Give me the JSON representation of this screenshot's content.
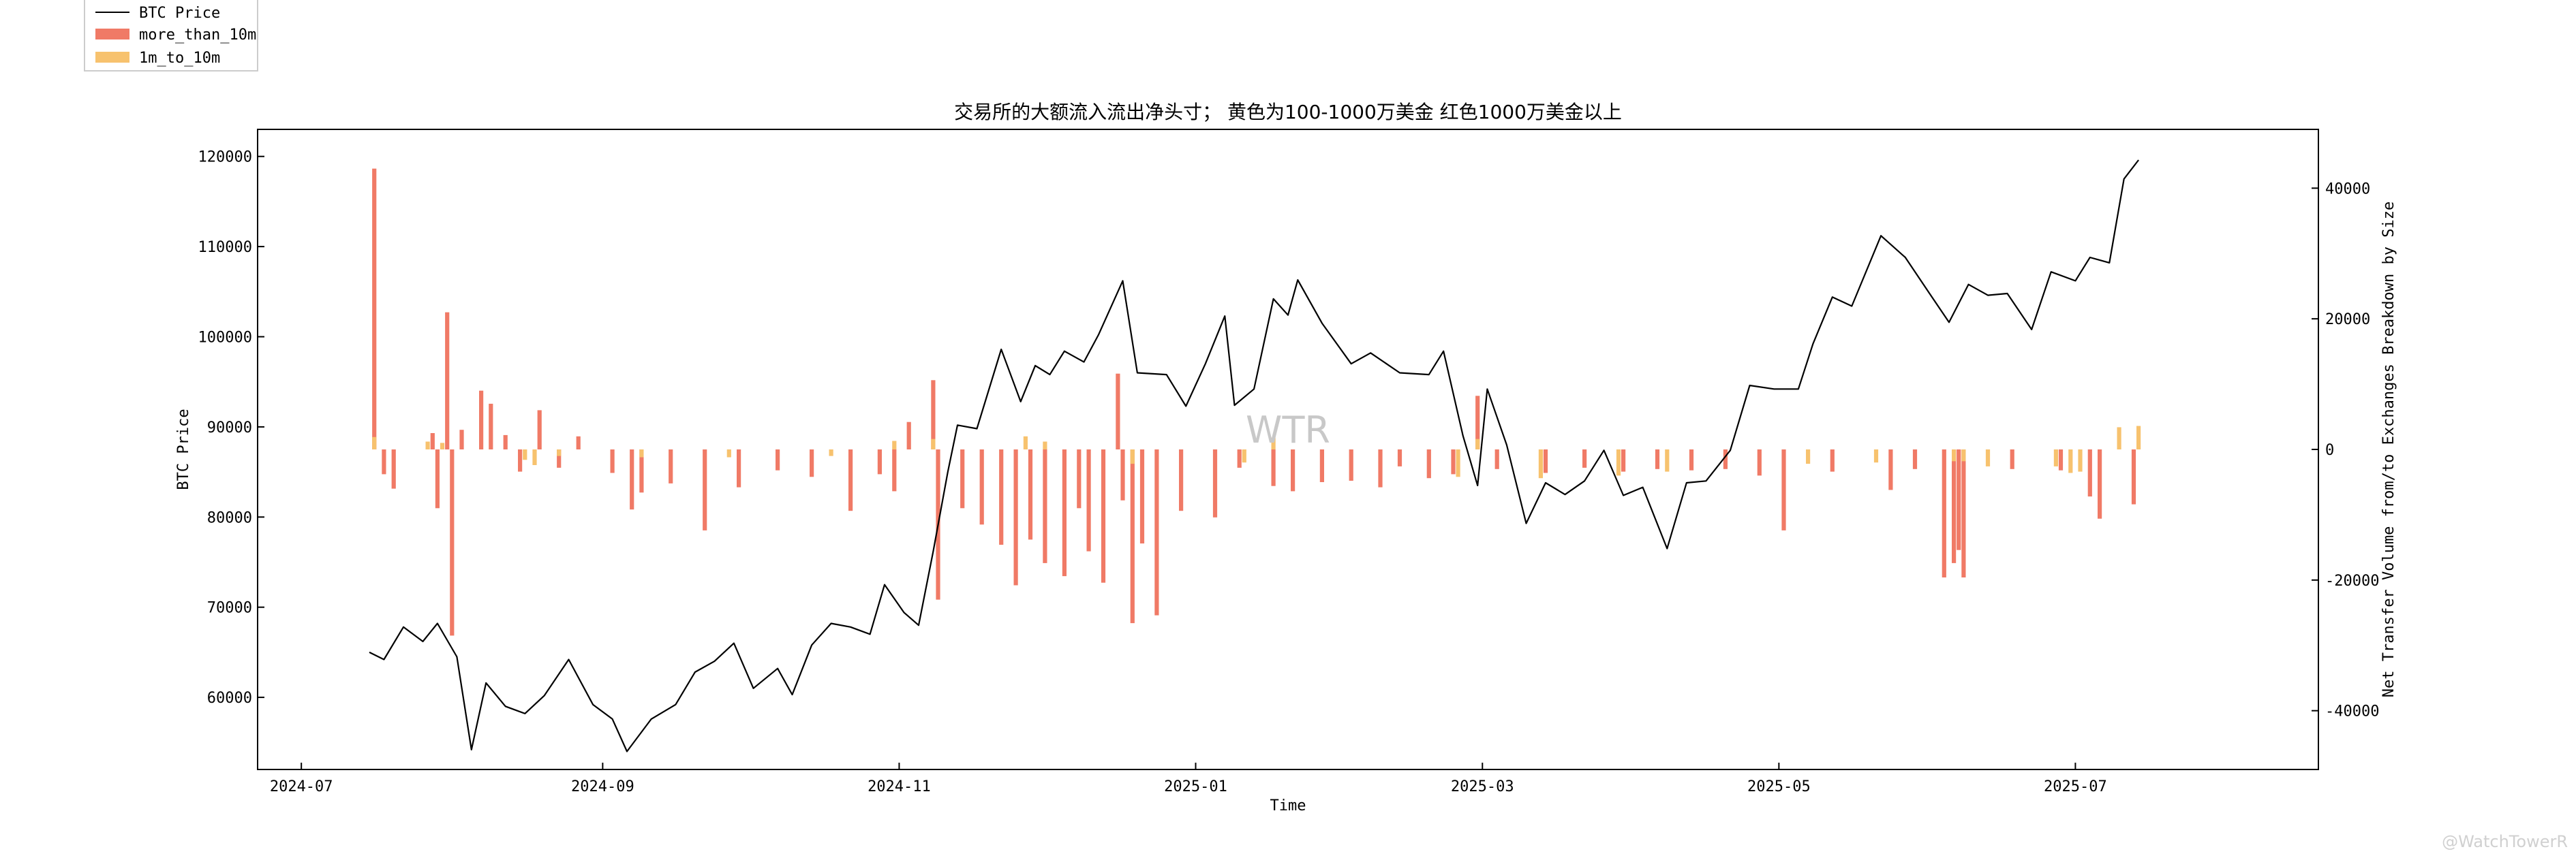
{
  "chart_data": {
    "type": "bar+line",
    "title": "交易所的大额流入流出净头寸； 黄色为100-1000万美金 红色1000万美金以上",
    "xlabel": "Time",
    "ylabel_left": "BTC Price",
    "ylabel_right": "Net Transfer Volume from/to Exchanges Breakdown by Size",
    "xlim": [
      "2024-06-22",
      "2025-08-20"
    ],
    "ylim_left": [
      52000,
      123000
    ],
    "ylim_right": [
      -49000,
      49000
    ],
    "x_tick_labels": [
      "2024-07",
      "2024-09",
      "2024-11",
      "2025-01",
      "2025-03",
      "2025-05",
      "2025-07"
    ],
    "y_left_tick_labels": [
      "60000",
      "70000",
      "80000",
      "90000",
      "100000",
      "110000",
      "120000"
    ],
    "y_right_tick_labels": [
      "-40000",
      "-20000",
      "0",
      "20000",
      "40000"
    ],
    "grid": false,
    "legend_position": "upper-left-outside",
    "colors": {
      "btc_price": "#000000",
      "more_than_10m": "#f07a66",
      "1m_to_10m": "#f7c26e"
    },
    "series": [
      {
        "name": "BTC Price",
        "type": "line",
        "points": [
          [
            "2024-07-15",
            65000
          ],
          [
            "2024-07-18",
            64200
          ],
          [
            "2024-07-22",
            67800
          ],
          [
            "2024-07-26",
            66200
          ],
          [
            "2024-07-29",
            68200
          ],
          [
            "2024-08-02",
            64500
          ],
          [
            "2024-08-05",
            54200
          ],
          [
            "2024-08-08",
            61600
          ],
          [
            "2024-08-12",
            59000
          ],
          [
            "2024-08-16",
            58200
          ],
          [
            "2024-08-20",
            60200
          ],
          [
            "2024-08-25",
            64200
          ],
          [
            "2024-08-30",
            59200
          ],
          [
            "2024-09-03",
            57600
          ],
          [
            "2024-09-06",
            54000
          ],
          [
            "2024-09-11",
            57600
          ],
          [
            "2024-09-16",
            59200
          ],
          [
            "2024-09-20",
            62800
          ],
          [
            "2024-09-24",
            64000
          ],
          [
            "2024-09-28",
            66000
          ],
          [
            "2024-10-02",
            61000
          ],
          [
            "2024-10-07",
            63200
          ],
          [
            "2024-10-10",
            60300
          ],
          [
            "2024-10-14",
            65800
          ],
          [
            "2024-10-18",
            68200
          ],
          [
            "2024-10-22",
            67800
          ],
          [
            "2024-10-26",
            67000
          ],
          [
            "2024-10-29",
            72500
          ],
          [
            "2024-11-02",
            69400
          ],
          [
            "2024-11-05",
            68000
          ],
          [
            "2024-11-08",
            76200
          ],
          [
            "2024-11-11",
            85000
          ],
          [
            "2024-11-13",
            90200
          ],
          [
            "2024-11-17",
            89800
          ],
          [
            "2024-11-22",
            98600
          ],
          [
            "2024-11-26",
            92800
          ],
          [
            "2024-11-29",
            96800
          ],
          [
            "2024-12-02",
            95800
          ],
          [
            "2024-12-05",
            98400
          ],
          [
            "2024-12-09",
            97200
          ],
          [
            "2024-12-12",
            100200
          ],
          [
            "2024-12-17",
            106200
          ],
          [
            "2024-12-20",
            96000
          ],
          [
            "2024-12-26",
            95800
          ],
          [
            "2024-12-30",
            92300
          ],
          [
            "2025-01-03",
            97000
          ],
          [
            "2025-01-07",
            102300
          ],
          [
            "2025-01-09",
            92400
          ],
          [
            "2025-01-13",
            94200
          ],
          [
            "2025-01-17",
            104200
          ],
          [
            "2025-01-20",
            102400
          ],
          [
            "2025-01-22",
            106300
          ],
          [
            "2025-01-27",
            101500
          ],
          [
            "2025-02-02",
            97000
          ],
          [
            "2025-02-06",
            98200
          ],
          [
            "2025-02-12",
            96000
          ],
          [
            "2025-02-18",
            95800
          ],
          [
            "2025-02-21",
            98400
          ],
          [
            "2025-02-25",
            89000
          ],
          [
            "2025-02-28",
            83500
          ],
          [
            "2025-03-02",
            94200
          ],
          [
            "2025-03-06",
            88000
          ],
          [
            "2025-03-10",
            79300
          ],
          [
            "2025-03-14",
            83800
          ],
          [
            "2025-03-18",
            82500
          ],
          [
            "2025-03-22",
            84000
          ],
          [
            "2025-03-26",
            87400
          ],
          [
            "2025-03-30",
            82400
          ],
          [
            "2025-04-03",
            83300
          ],
          [
            "2025-04-08",
            76500
          ],
          [
            "2025-04-12",
            83800
          ],
          [
            "2025-04-16",
            84000
          ],
          [
            "2025-04-21",
            87400
          ],
          [
            "2025-04-25",
            94600
          ],
          [
            "2025-04-30",
            94200
          ],
          [
            "2025-05-05",
            94200
          ],
          [
            "2025-05-08",
            99200
          ],
          [
            "2025-05-12",
            104400
          ],
          [
            "2025-05-16",
            103400
          ],
          [
            "2025-05-22",
            111200
          ],
          [
            "2025-05-27",
            108800
          ],
          [
            "2025-06-01",
            104800
          ],
          [
            "2025-06-05",
            101600
          ],
          [
            "2025-06-09",
            105800
          ],
          [
            "2025-06-13",
            104600
          ],
          [
            "2025-06-17",
            104800
          ],
          [
            "2025-06-22",
            100800
          ],
          [
            "2025-06-26",
            107200
          ],
          [
            "2025-07-01",
            106200
          ],
          [
            "2025-07-04",
            108800
          ],
          [
            "2025-07-08",
            108200
          ],
          [
            "2025-07-11",
            117500
          ],
          [
            "2025-07-14",
            119600
          ]
        ]
      },
      {
        "name": "more_than_10m",
        "type": "bar",
        "points": [
          [
            "2024-07-16",
            43000
          ],
          [
            "2024-07-18",
            -3800
          ],
          [
            "2024-07-20",
            -6000
          ],
          [
            "2024-07-28",
            2500
          ],
          [
            "2024-07-29",
            -9000
          ],
          [
            "2024-07-31",
            21000
          ],
          [
            "2024-08-01",
            -28500
          ],
          [
            "2024-08-03",
            3000
          ],
          [
            "2024-08-07",
            9000
          ],
          [
            "2024-08-09",
            7000
          ],
          [
            "2024-08-12",
            2200
          ],
          [
            "2024-08-15",
            -3400
          ],
          [
            "2024-08-19",
            6000
          ],
          [
            "2024-08-23",
            -2800
          ],
          [
            "2024-08-27",
            2000
          ],
          [
            "2024-09-03",
            -3600
          ],
          [
            "2024-09-07",
            -9200
          ],
          [
            "2024-09-09",
            -6600
          ],
          [
            "2024-09-15",
            -5200
          ],
          [
            "2024-09-22",
            -12400
          ],
          [
            "2024-09-29",
            -5800
          ],
          [
            "2024-10-07",
            -3200
          ],
          [
            "2024-10-14",
            -4200
          ],
          [
            "2024-10-22",
            -9400
          ],
          [
            "2024-10-28",
            -3800
          ],
          [
            "2024-10-31",
            -6400
          ],
          [
            "2024-11-03",
            4200
          ],
          [
            "2024-11-08",
            10600
          ],
          [
            "2024-11-09",
            -23000
          ],
          [
            "2024-11-14",
            -9000
          ],
          [
            "2024-11-18",
            -11500
          ],
          [
            "2024-11-22",
            -14600
          ],
          [
            "2024-11-25",
            -20800
          ],
          [
            "2024-11-28",
            -13800
          ],
          [
            "2024-12-01",
            -17400
          ],
          [
            "2024-12-05",
            -19400
          ],
          [
            "2024-12-08",
            -9000
          ],
          [
            "2024-12-10",
            -15600
          ],
          [
            "2024-12-13",
            -20400
          ],
          [
            "2024-12-16",
            11600
          ],
          [
            "2024-12-17",
            -7800
          ],
          [
            "2024-12-19",
            -26600
          ],
          [
            "2024-12-21",
            -14400
          ],
          [
            "2024-12-24",
            -25400
          ],
          [
            "2024-12-29",
            -9400
          ],
          [
            "2025-01-05",
            -10400
          ],
          [
            "2025-01-10",
            -2800
          ],
          [
            "2025-01-17",
            -5600
          ],
          [
            "2025-01-21",
            -6400
          ],
          [
            "2025-01-27",
            -5000
          ],
          [
            "2025-02-02",
            -4800
          ],
          [
            "2025-02-08",
            -5800
          ],
          [
            "2025-02-12",
            -2600
          ],
          [
            "2025-02-18",
            -4400
          ],
          [
            "2025-02-23",
            -3800
          ],
          [
            "2025-02-28",
            8200
          ],
          [
            "2025-03-04",
            -3000
          ],
          [
            "2025-03-14",
            -3600
          ],
          [
            "2025-03-22",
            -2800
          ],
          [
            "2025-03-30",
            -3400
          ],
          [
            "2025-04-06",
            -3000
          ],
          [
            "2025-04-13",
            -3200
          ],
          [
            "2025-04-20",
            -3000
          ],
          [
            "2025-04-27",
            -4000
          ],
          [
            "2025-05-02",
            -12400
          ],
          [
            "2025-05-12",
            -3400
          ],
          [
            "2025-05-24",
            -6200
          ],
          [
            "2025-05-29",
            -3000
          ],
          [
            "2025-06-04",
            -19600
          ],
          [
            "2025-06-06",
            -17400
          ],
          [
            "2025-06-07",
            -15400
          ],
          [
            "2025-06-08",
            -19600
          ],
          [
            "2025-06-18",
            -3000
          ],
          [
            "2025-06-28",
            -3200
          ],
          [
            "2025-07-04",
            -7200
          ],
          [
            "2025-07-06",
            -10600
          ],
          [
            "2025-07-13",
            -8400
          ]
        ]
      },
      {
        "name": "1m_to_10m",
        "type": "bar",
        "points": [
          [
            "2024-07-16",
            1900
          ],
          [
            "2024-07-27",
            1200
          ],
          [
            "2024-07-30",
            1000
          ],
          [
            "2024-08-16",
            -1600
          ],
          [
            "2024-08-18",
            -2400
          ],
          [
            "2024-08-23",
            -1000
          ],
          [
            "2024-09-09",
            -1200
          ],
          [
            "2024-09-27",
            -1200
          ],
          [
            "2024-10-18",
            -1000
          ],
          [
            "2024-10-31",
            1300
          ],
          [
            "2024-11-08",
            1600
          ],
          [
            "2024-11-27",
            2000
          ],
          [
            "2024-12-01",
            1200
          ],
          [
            "2024-12-19",
            -2200
          ],
          [
            "2025-01-11",
            -2000
          ],
          [
            "2025-01-17",
            1800
          ],
          [
            "2025-02-24",
            -4200
          ],
          [
            "2025-02-28",
            1600
          ],
          [
            "2025-03-13",
            -4400
          ],
          [
            "2025-03-29",
            -4000
          ],
          [
            "2025-04-08",
            -3400
          ],
          [
            "2025-05-07",
            -2200
          ],
          [
            "2025-05-21",
            -2000
          ],
          [
            "2025-06-06",
            -1800
          ],
          [
            "2025-06-08",
            -1800
          ],
          [
            "2025-06-13",
            -2600
          ],
          [
            "2025-06-27",
            -2600
          ],
          [
            "2025-06-30",
            -3600
          ],
          [
            "2025-07-02",
            -3400
          ],
          [
            "2025-07-10",
            3400
          ],
          [
            "2025-07-14",
            3600
          ]
        ]
      }
    ]
  },
  "watermark_center": "WTR",
  "watermark_corner": "@WatchTowerR"
}
